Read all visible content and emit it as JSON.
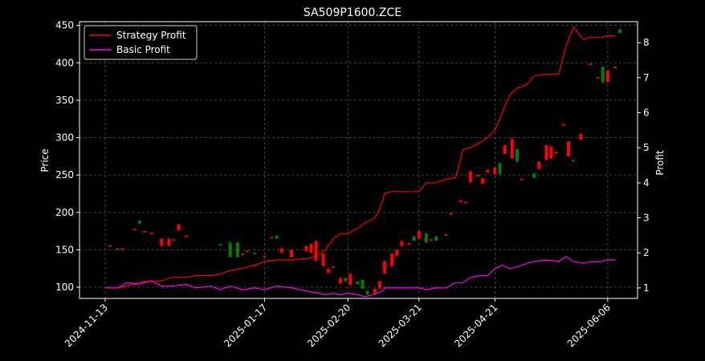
{
  "chart_data": {
    "type": "line",
    "title": "SA509P1600.ZCE",
    "ylabel_left": "Price",
    "ylabel_right": "Profit",
    "x_start": "2024-11-13",
    "x_end": "2025-06-09",
    "x_ticks": [
      "2024-11-13",
      "2025-01-17",
      "2025-02-20",
      "2025-03-21",
      "2025-04-21",
      "2025-06-06"
    ],
    "price_ylim": [
      85,
      455
    ],
    "price_ticks": [
      100,
      150,
      200,
      250,
      300,
      350,
      400,
      450
    ],
    "profit_ylim": [
      0.7,
      8.6
    ],
    "profit_ticks": [
      1,
      2,
      3,
      4,
      5,
      6,
      7,
      8
    ],
    "grid": true,
    "legend_position": "top-left",
    "colors": {
      "background": "#000000",
      "strategy": "#ff0000",
      "basic": "#ff00ff",
      "up_candle": "#ff0000",
      "down_candle": "#008000",
      "grid": "#555555",
      "axis": "#ffffff"
    },
    "series": [
      {
        "name": "Strategy Profit",
        "axis": "right",
        "color": "#ff0000",
        "points": [
          [
            "2024-11-13",
            1.0
          ],
          [
            "2024-11-18",
            1.0
          ],
          [
            "2024-11-22",
            1.05
          ],
          [
            "2024-11-26",
            1.15
          ],
          [
            "2024-12-02",
            1.2
          ],
          [
            "2024-12-06",
            1.2
          ],
          [
            "2024-12-10",
            1.3
          ],
          [
            "2024-12-16",
            1.3
          ],
          [
            "2024-12-20",
            1.35
          ],
          [
            "2024-12-26",
            1.35
          ],
          [
            "2024-12-30",
            1.4
          ],
          [
            "2025-01-03",
            1.5
          ],
          [
            "2025-01-08",
            1.55
          ],
          [
            "2025-01-13",
            1.65
          ],
          [
            "2025-01-17",
            1.75
          ],
          [
            "2025-01-22",
            1.8
          ],
          [
            "2025-01-28",
            1.8
          ],
          [
            "2025-02-04",
            1.85
          ],
          [
            "2025-02-08",
            1.95
          ],
          [
            "2025-02-11",
            2.1
          ],
          [
            "2025-02-14",
            2.4
          ],
          [
            "2025-02-17",
            2.55
          ],
          [
            "2025-02-20",
            2.55
          ],
          [
            "2025-02-24",
            2.7
          ],
          [
            "2025-02-27",
            2.85
          ],
          [
            "2025-03-02",
            2.95
          ],
          [
            "2025-03-04",
            3.1
          ],
          [
            "2025-03-06",
            3.45
          ],
          [
            "2025-03-07",
            3.7
          ],
          [
            "2025-03-10",
            3.75
          ],
          [
            "2025-03-13",
            3.75
          ],
          [
            "2025-03-17",
            3.75
          ],
          [
            "2025-03-21",
            3.75
          ],
          [
            "2025-03-24",
            4.0
          ],
          [
            "2025-03-28",
            4.0
          ],
          [
            "2025-04-01",
            4.1
          ],
          [
            "2025-04-05",
            4.15
          ],
          [
            "2025-04-08",
            4.95
          ],
          [
            "2025-04-11",
            5.0
          ],
          [
            "2025-04-15",
            5.15
          ],
          [
            "2025-04-18",
            5.3
          ],
          [
            "2025-04-21",
            5.5
          ],
          [
            "2025-04-24",
            6.0
          ],
          [
            "2025-04-27",
            6.5
          ],
          [
            "2025-04-30",
            6.7
          ],
          [
            "2025-05-04",
            6.8
          ],
          [
            "2025-05-07",
            7.05
          ],
          [
            "2025-05-12",
            7.1
          ],
          [
            "2025-05-17",
            7.1
          ],
          [
            "2025-05-20",
            7.9
          ],
          [
            "2025-05-23",
            8.45
          ],
          [
            "2025-05-27",
            8.1
          ],
          [
            "2025-05-30",
            8.15
          ],
          [
            "2025-06-03",
            8.15
          ],
          [
            "2025-06-06",
            8.2
          ],
          [
            "2025-06-09",
            8.2
          ]
        ]
      },
      {
        "name": "Basic Profit",
        "axis": "right",
        "color": "#ff00ff",
        "points": [
          [
            "2024-11-13",
            1.0
          ],
          [
            "2024-11-18",
            1.0
          ],
          [
            "2024-11-22",
            1.15
          ],
          [
            "2024-11-26",
            1.1
          ],
          [
            "2024-12-02",
            1.2
          ],
          [
            "2024-12-06",
            1.05
          ],
          [
            "2024-12-10",
            1.05
          ],
          [
            "2024-12-16",
            1.1
          ],
          [
            "2024-12-20",
            1.0
          ],
          [
            "2024-12-26",
            1.05
          ],
          [
            "2024-12-30",
            0.95
          ],
          [
            "2025-01-03",
            1.05
          ],
          [
            "2025-01-08",
            0.95
          ],
          [
            "2025-01-13",
            1.0
          ],
          [
            "2025-01-17",
            0.95
          ],
          [
            "2025-01-22",
            1.05
          ],
          [
            "2025-01-28",
            1.0
          ],
          [
            "2025-02-04",
            0.9
          ],
          [
            "2025-02-08",
            0.85
          ],
          [
            "2025-02-11",
            0.8
          ],
          [
            "2025-02-14",
            0.85
          ],
          [
            "2025-02-17",
            0.8
          ],
          [
            "2025-02-20",
            0.85
          ],
          [
            "2025-02-24",
            0.8
          ],
          [
            "2025-02-27",
            0.75
          ],
          [
            "2025-03-02",
            0.8
          ],
          [
            "2025-03-04",
            0.85
          ],
          [
            "2025-03-06",
            0.9
          ],
          [
            "2025-03-07",
            1.0
          ],
          [
            "2025-03-10",
            1.0
          ],
          [
            "2025-03-13",
            1.0
          ],
          [
            "2025-03-17",
            1.0
          ],
          [
            "2025-03-21",
            1.0
          ],
          [
            "2025-03-24",
            0.95
          ],
          [
            "2025-03-28",
            1.0
          ],
          [
            "2025-04-01",
            1.0
          ],
          [
            "2025-04-05",
            1.15
          ],
          [
            "2025-04-08",
            1.15
          ],
          [
            "2025-04-11",
            1.3
          ],
          [
            "2025-04-15",
            1.35
          ],
          [
            "2025-04-18",
            1.35
          ],
          [
            "2025-04-21",
            1.55
          ],
          [
            "2025-04-24",
            1.65
          ],
          [
            "2025-04-27",
            1.55
          ],
          [
            "2025-04-30",
            1.6
          ],
          [
            "2025-05-04",
            1.7
          ],
          [
            "2025-05-07",
            1.75
          ],
          [
            "2025-05-12",
            1.8
          ],
          [
            "2025-05-17",
            1.75
          ],
          [
            "2025-05-20",
            1.9
          ],
          [
            "2025-05-23",
            1.75
          ],
          [
            "2025-05-27",
            1.7
          ],
          [
            "2025-05-30",
            1.75
          ],
          [
            "2025-06-03",
            1.75
          ],
          [
            "2025-06-06",
            1.8
          ],
          [
            "2025-06-09",
            1.8
          ]
        ]
      }
    ],
    "candles": [
      [
        "2024-11-15",
        154,
        156
      ],
      [
        "2024-11-18",
        152,
        150
      ],
      [
        "2024-11-20",
        150,
        152
      ],
      [
        "2024-11-25",
        176,
        178
      ],
      [
        "2024-11-27",
        189,
        185
      ],
      [
        "2024-11-29",
        173,
        175
      ],
      [
        "2024-12-02",
        171,
        173
      ],
      [
        "2024-12-06",
        155,
        165
      ],
      [
        "2024-12-09",
        155,
        165
      ],
      [
        "2024-12-11",
        162,
        164
      ],
      [
        "2024-12-13",
        176,
        184
      ],
      [
        "2024-12-16",
        167,
        169
      ],
      [
        "2024-12-30",
        158,
        156
      ],
      [
        "2025-01-03",
        160,
        140
      ],
      [
        "2025-01-06",
        160,
        140
      ],
      [
        "2025-01-08",
        143,
        145
      ],
      [
        "2025-01-10",
        147,
        149
      ],
      [
        "2025-01-13",
        146,
        144
      ],
      [
        "2025-01-17",
        140,
        142
      ],
      [
        "2025-01-20",
        165,
        167
      ],
      [
        "2025-01-22",
        169,
        165
      ],
      [
        "2025-01-24",
        146,
        152
      ],
      [
        "2025-01-28",
        140,
        150
      ],
      [
        "2025-02-03",
        148,
        155
      ],
      [
        "2025-02-05",
        146,
        158
      ],
      [
        "2025-02-07",
        135,
        162
      ],
      [
        "2025-02-10",
        128,
        145
      ],
      [
        "2025-02-12",
        119,
        125
      ],
      [
        "2025-02-14",
        126,
        128
      ],
      [
        "2025-02-17",
        105,
        112
      ],
      [
        "2025-02-19",
        112,
        108
      ],
      [
        "2025-02-21",
        103,
        118
      ],
      [
        "2025-02-24",
        108,
        104
      ],
      [
        "2025-02-26",
        110,
        98
      ],
      [
        "2025-02-28",
        95,
        90
      ],
      [
        "2025-03-03",
        92,
        98
      ],
      [
        "2025-03-05",
        98,
        108
      ],
      [
        "2025-03-07",
        118,
        135
      ],
      [
        "2025-03-10",
        128,
        145
      ],
      [
        "2025-03-12",
        142,
        150
      ],
      [
        "2025-03-14",
        155,
        162
      ],
      [
        "2025-03-17",
        157,
        159
      ],
      [
        "2025-03-19",
        168,
        162
      ],
      [
        "2025-03-21",
        165,
        175
      ],
      [
        "2025-03-24",
        172,
        160
      ],
      [
        "2025-03-26",
        162,
        164
      ],
      [
        "2025-03-28",
        168,
        162
      ],
      [
        "2025-04-01",
        169,
        171
      ],
      [
        "2025-04-03",
        197,
        199
      ],
      [
        "2025-04-07",
        214,
        216
      ],
      [
        "2025-04-09",
        212,
        214
      ],
      [
        "2025-04-11",
        240,
        255
      ],
      [
        "2025-04-14",
        248,
        250
      ],
      [
        "2025-04-16",
        238,
        246
      ],
      [
        "2025-04-18",
        253,
        257
      ],
      [
        "2025-04-21",
        251,
        260
      ],
      [
        "2025-04-23",
        266,
        251
      ],
      [
        "2025-04-25",
        278,
        290
      ],
      [
        "2025-04-28",
        272,
        298
      ],
      [
        "2025-04-30",
        285,
        268
      ],
      [
        "2025-05-02",
        243,
        245
      ],
      [
        "2025-05-07",
        252,
        246
      ],
      [
        "2025-05-09",
        258,
        268
      ],
      [
        "2025-05-12",
        270,
        290
      ],
      [
        "2025-05-14",
        272,
        288
      ],
      [
        "2025-05-16",
        279,
        281
      ],
      [
        "2025-05-19",
        316,
        318
      ],
      [
        "2025-05-21",
        275,
        295
      ],
      [
        "2025-05-23",
        270,
        268
      ],
      [
        "2025-05-26",
        297,
        305
      ],
      [
        "2025-05-30",
        397,
        399
      ],
      [
        "2025-06-02",
        379,
        381
      ],
      [
        "2025-06-04",
        395,
        374
      ],
      [
        "2025-06-06",
        374,
        390
      ],
      [
        "2025-06-09",
        393,
        395
      ],
      [
        "2025-06-11",
        445,
        440
      ]
    ]
  }
}
